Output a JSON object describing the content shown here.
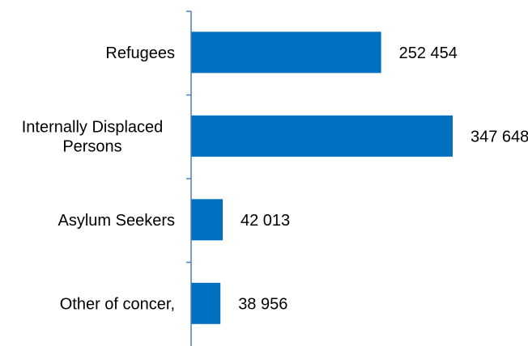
{
  "chart_data": {
    "type": "bar",
    "orientation": "horizontal",
    "title": "",
    "xlabel": "",
    "ylabel": "",
    "categories": [
      [
        "Refugees"
      ],
      [
        "Internally Displaced",
        "Persons"
      ],
      [
        "Asylum Seekers"
      ],
      [
        "Other of concer,"
      ]
    ],
    "values": [
      252454,
      347648,
      42013,
      38956
    ],
    "value_labels": [
      "252 454",
      "347 648",
      "42 013",
      "38 956"
    ],
    "xlim": [
      0,
      347648
    ],
    "grid": false,
    "legend": "none",
    "bar_color": "#0070C0",
    "axis_color": "#4a7fb5"
  }
}
